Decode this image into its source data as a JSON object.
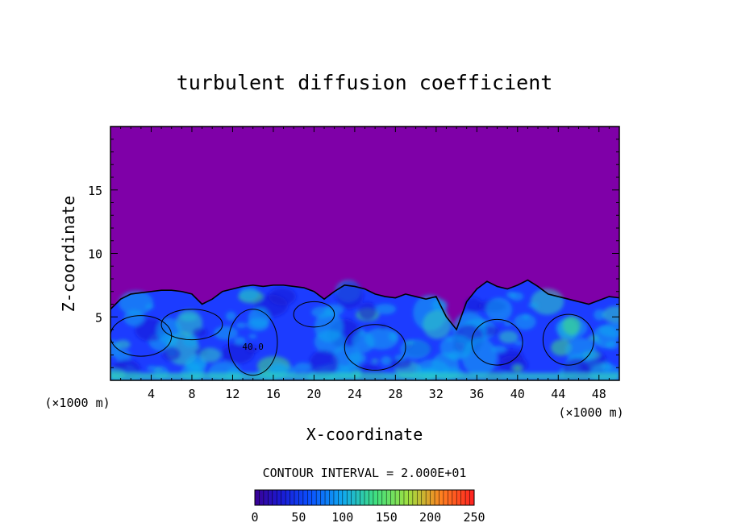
{
  "chart_data": {
    "type": "heatmap",
    "title": "turbulent diffusion coefficient",
    "xlabel": "X-coordinate",
    "ylabel": "Z-coordinate",
    "x_unit": "(×1000 m)",
    "y_unit": "(×1000 m)",
    "xlim": [
      0,
      50
    ],
    "ylim": [
      0,
      20
    ],
    "x_ticks": [
      4,
      8,
      12,
      16,
      20,
      24,
      28,
      32,
      36,
      40,
      44,
      48
    ],
    "y_ticks": [
      5,
      10,
      15
    ],
    "contour_interval": "CONTOUR INTERVAL = 2.000E+01",
    "colorbar": {
      "range": [
        0,
        250
      ],
      "tick_labels": [
        "0",
        "50",
        "100",
        "150",
        "200",
        "250"
      ],
      "ticks": [
        0,
        50,
        100,
        150,
        200,
        250
      ]
    },
    "background_value": 0,
    "contour_labels": [
      {
        "text": "40.0",
        "x": 14,
        "z": 2.4
      }
    ],
    "mixed_layer_top": [
      [
        0,
        5.6
      ],
      [
        1,
        6.4
      ],
      [
        2,
        6.8
      ],
      [
        3,
        6.9
      ],
      [
        4,
        7.0
      ],
      [
        5,
        7.1
      ],
      [
        6,
        7.1
      ],
      [
        7,
        7.0
      ],
      [
        8,
        6.8
      ],
      [
        9,
        6.0
      ],
      [
        10,
        6.4
      ],
      [
        11,
        7.0
      ],
      [
        12,
        7.2
      ],
      [
        13,
        7.4
      ],
      [
        14,
        7.5
      ],
      [
        15,
        7.4
      ],
      [
        16,
        7.5
      ],
      [
        17,
        7.5
      ],
      [
        18,
        7.4
      ],
      [
        19,
        7.3
      ],
      [
        20,
        7.0
      ],
      [
        21,
        6.4
      ],
      [
        22,
        7.0
      ],
      [
        23,
        7.5
      ],
      [
        24,
        7.4
      ],
      [
        25,
        7.2
      ],
      [
        26,
        6.8
      ],
      [
        27,
        6.6
      ],
      [
        28,
        6.5
      ],
      [
        29,
        6.8
      ],
      [
        30,
        6.6
      ],
      [
        31,
        6.4
      ],
      [
        32,
        6.6
      ],
      [
        33,
        5.0
      ],
      [
        34,
        4.0
      ],
      [
        35,
        6.2
      ],
      [
        36,
        7.2
      ],
      [
        37,
        7.8
      ],
      [
        38,
        7.4
      ],
      [
        39,
        7.2
      ],
      [
        40,
        7.5
      ],
      [
        41,
        7.9
      ],
      [
        42,
        7.4
      ],
      [
        43,
        6.8
      ],
      [
        44,
        6.6
      ],
      [
        45,
        6.4
      ],
      [
        46,
        6.2
      ],
      [
        47,
        6.0
      ],
      [
        48,
        6.3
      ],
      [
        49,
        6.6
      ],
      [
        50,
        6.5
      ]
    ]
  },
  "colors": {
    "background_field": "#7f00a8",
    "scale": [
      "#3a0094",
      "#1a1ad4",
      "#0a50ff",
      "#10a8f0",
      "#30d0c0",
      "#40e080",
      "#a0e040",
      "#e0c020",
      "#ff6020",
      "#ff2020"
    ]
  }
}
